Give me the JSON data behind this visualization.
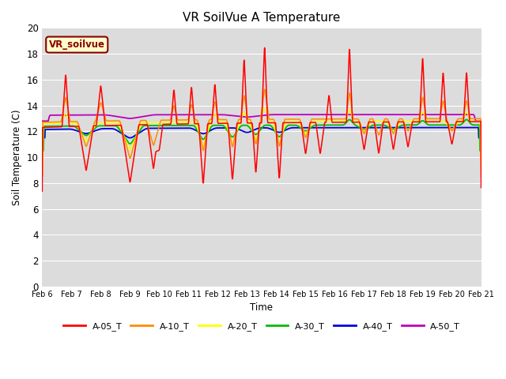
{
  "title": "VR SoilVue A Temperature",
  "ylabel": "Soil Temperature (C)",
  "xlabel": "Time",
  "ylim": [
    0,
    20
  ],
  "xlim": [
    0,
    15
  ],
  "background_color": "#dcdcdc",
  "grid_color": "white",
  "series_colors": {
    "A-05_T": "#ff0000",
    "A-10_T": "#ff8c00",
    "A-20_T": "#ffff00",
    "A-30_T": "#00bb00",
    "A-40_T": "#0000dd",
    "A-50_T": "#bb00bb"
  },
  "xtick_labels": [
    "Feb 6",
    "Feb 7",
    "Feb 8",
    "Feb 9",
    "Feb 10",
    "Feb 11",
    "Feb 12",
    "Feb 13",
    "Feb 14",
    "Feb 15",
    "Feb 16",
    "Feb 17",
    "Feb 18",
    "Feb 19",
    "Feb 20",
    "Feb 21"
  ],
  "annotation_box": "VR_soilvue",
  "annotation_color": "#8b0000"
}
